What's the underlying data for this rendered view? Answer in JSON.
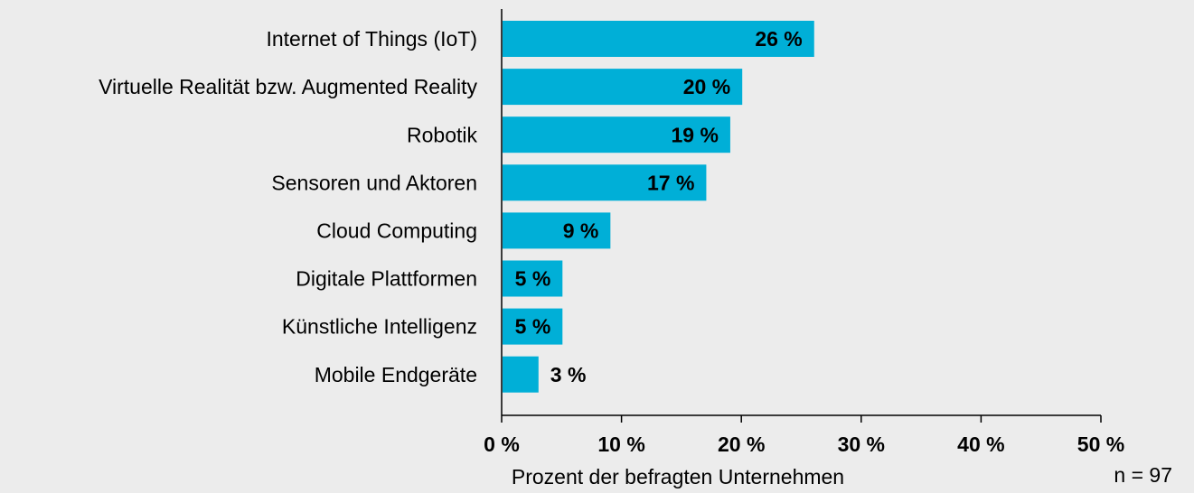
{
  "chart_data": {
    "type": "bar",
    "orientation": "horizontal",
    "categories": [
      "Internet of Things (IoT)",
      "Virtuelle Realität bzw. Augmented Reality",
      "Robotik",
      "Sensoren und Aktoren",
      "Cloud Computing",
      "Digitale Plattformen",
      "Künstliche Intelligenz",
      "Mobile Endgeräte"
    ],
    "values": [
      26,
      20,
      19,
      17,
      9,
      5,
      5,
      3
    ],
    "value_labels": [
      "26 %",
      "20 %",
      "19 %",
      "17 %",
      "9 %",
      "5 %",
      "5 %",
      "3 %"
    ],
    "color": "#00afd7",
    "xlim": [
      0,
      50
    ],
    "xticks": [
      {
        "value": 0,
        "label": "0 %"
      },
      {
        "value": 10,
        "label": "10 %"
      },
      {
        "value": 20,
        "label": "20 %"
      },
      {
        "value": 30,
        "label": "30 %"
      },
      {
        "value": 40,
        "label": "40 %"
      },
      {
        "value": 50,
        "label": "50 %"
      }
    ],
    "xlabel": "Prozent der befragten Unternehmen",
    "note": "n = 97"
  }
}
